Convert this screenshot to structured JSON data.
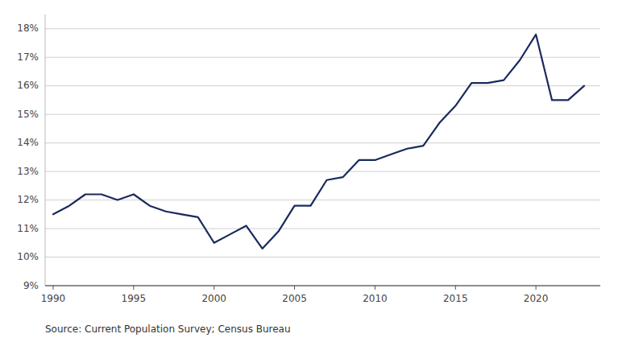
{
  "chart_data": {
    "type": "line",
    "x": [
      1990,
      1991,
      1992,
      1993,
      1994,
      1995,
      1996,
      1997,
      1998,
      1999,
      2000,
      2001,
      2002,
      2003,
      2004,
      2005,
      2006,
      2007,
      2008,
      2009,
      2010,
      2011,
      2012,
      2013,
      2014,
      2015,
      2016,
      2017,
      2018,
      2019,
      2020,
      2021,
      2022,
      2023
    ],
    "values": [
      0.115,
      0.118,
      0.122,
      0.122,
      0.12,
      0.122,
      0.118,
      0.116,
      0.115,
      0.114,
      0.105,
      0.108,
      0.111,
      0.103,
      0.109,
      0.118,
      0.118,
      0.127,
      0.128,
      0.134,
      0.134,
      0.136,
      0.138,
      0.139,
      0.147,
      0.153,
      0.161,
      0.161,
      0.162,
      0.169,
      0.178,
      0.155,
      0.155,
      0.16
    ],
    "color": "#1a2a5e",
    "xlim": [
      1989.5,
      2024.0
    ],
    "xticks": [
      1990,
      1995,
      2000,
      2005,
      2010,
      2015,
      2020
    ],
    "ylim": [
      0.09,
      0.185
    ],
    "yticks": [
      {
        "value": 0.09,
        "label": "9%"
      },
      {
        "value": 0.1,
        "label": "10%"
      },
      {
        "value": 0.11,
        "label": "11%"
      },
      {
        "value": 0.12,
        "label": "12%"
      },
      {
        "value": 0.13,
        "label": "13%"
      },
      {
        "value": 0.14,
        "label": "14%"
      },
      {
        "value": 0.15,
        "label": "15%"
      },
      {
        "value": 0.16,
        "label": "16%"
      },
      {
        "value": 0.17,
        "label": "17%"
      },
      {
        "value": 0.18,
        "label": "18%"
      }
    ],
    "grid": "y",
    "annotations": [
      "Source: Current Population Survey; Census Bureau"
    ]
  }
}
